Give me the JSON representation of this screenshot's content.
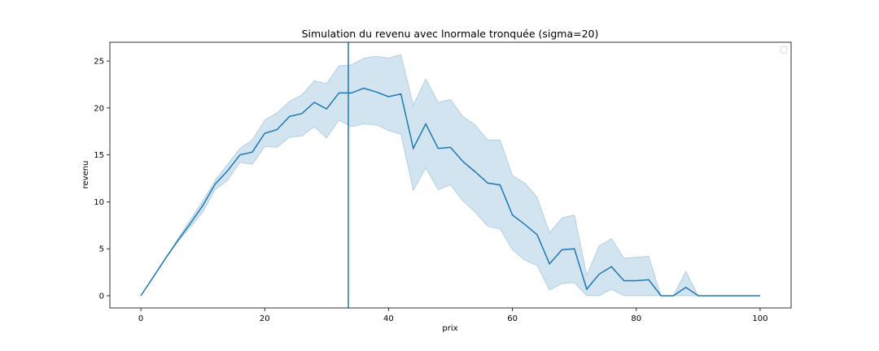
{
  "chart_data": {
    "type": "line",
    "title": "Simulation du revenu avec lnormale tronquée (sigma=20)",
    "xlabel": "prix",
    "ylabel": "revenu",
    "xlim": [
      -5,
      105
    ],
    "ylim": [
      -1.3,
      27
    ],
    "xticks": [
      0,
      20,
      40,
      60,
      80,
      100
    ],
    "yticks": [
      0,
      5,
      10,
      15,
      20,
      25
    ],
    "grid": false,
    "legend": "top-right",
    "legend_entries": [],
    "vline_x": 33.5,
    "colors": {
      "line": "#1f77b4",
      "band": "#1f77b4"
    },
    "series": [
      {
        "x": [
          0,
          2,
          4,
          6,
          8,
          10,
          12,
          14,
          16,
          18,
          20,
          22,
          24,
          26,
          28,
          30,
          32,
          34,
          36,
          38,
          40,
          42,
          44,
          46,
          48,
          50,
          52,
          54,
          56,
          58,
          60,
          62,
          64,
          66,
          68,
          70,
          72,
          74,
          76,
          78,
          80,
          82,
          84,
          86,
          88,
          90,
          92,
          94,
          96,
          98,
          100
        ],
        "mean": [
          0,
          2.0,
          4.0,
          5.9,
          7.7,
          9.6,
          11.9,
          13.3,
          15.0,
          15.3,
          17.3,
          17.7,
          19.1,
          19.4,
          20.6,
          19.9,
          21.6,
          21.6,
          22.1,
          21.7,
          21.2,
          21.5,
          15.7,
          18.3,
          15.7,
          15.8,
          14.3,
          13.2,
          12.0,
          11.8,
          8.6,
          7.6,
          6.5,
          3.4,
          4.9,
          5.0,
          0.7,
          2.3,
          3.1,
          1.6,
          1.6,
          1.7,
          0,
          0,
          0.9,
          0,
          0,
          0,
          0,
          0,
          0
        ],
        "lower": [
          0,
          2.0,
          4.0,
          5.8,
          7.3,
          8.9,
          11.3,
          12.3,
          14.2,
          14.0,
          15.9,
          15.8,
          16.9,
          17.0,
          18.0,
          16.8,
          18.7,
          18.0,
          18.3,
          18.2,
          17.6,
          17.2,
          11.2,
          13.6,
          11.3,
          11.8,
          10.1,
          8.9,
          7.4,
          7.1,
          4.9,
          3.8,
          3.2,
          0.6,
          1.3,
          1.4,
          0,
          0,
          0.7,
          0,
          0,
          0,
          0,
          0,
          0,
          0,
          0,
          0,
          0,
          0,
          0
        ],
        "upper": [
          0,
          2.0,
          4.0,
          6.1,
          8.1,
          10.1,
          12.3,
          14.0,
          15.7,
          16.6,
          18.7,
          19.5,
          20.7,
          21.4,
          22.9,
          22.6,
          24.5,
          24.6,
          25.3,
          25.5,
          25.3,
          25.7,
          20.3,
          23.1,
          20.6,
          20.9,
          19.1,
          18.2,
          16.6,
          16.6,
          12.8,
          12.0,
          10.5,
          6.7,
          8.3,
          8.6,
          2.2,
          5.3,
          6.1,
          4.0,
          4.1,
          4.2,
          0,
          0,
          2.6,
          0,
          0,
          0,
          0,
          0,
          0
        ]
      }
    ]
  }
}
